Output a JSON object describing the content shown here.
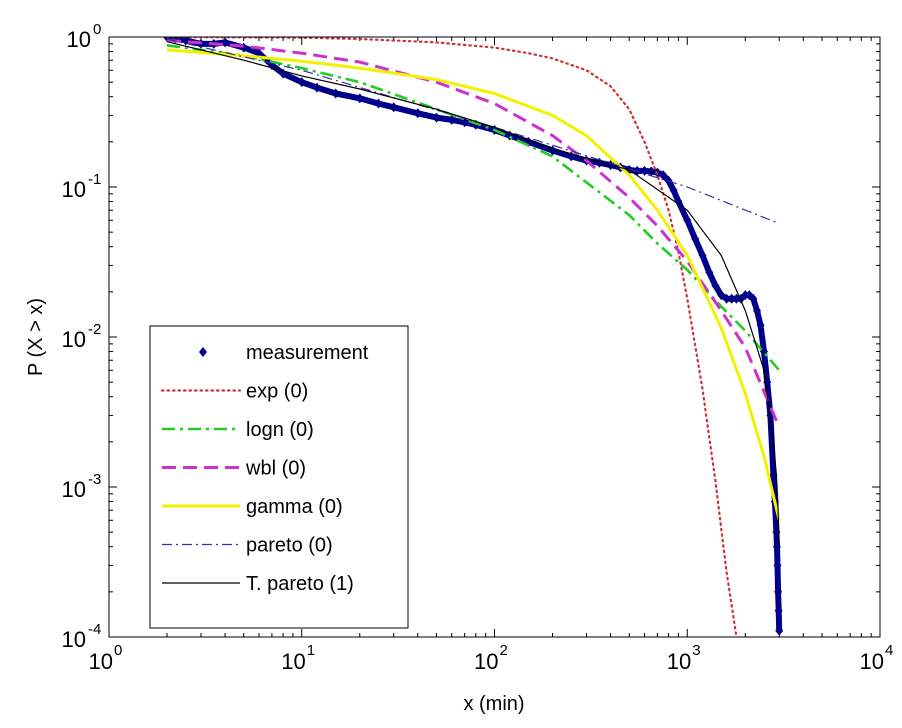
{
  "chart_data": {
    "type": "line",
    "xlabel": "x (min)",
    "ylabel": "P (X > x)",
    "xscale": "log",
    "yscale": "log",
    "xlim": [
      1,
      10000
    ],
    "ylim": [
      0.0001,
      1
    ],
    "x_ticks": [
      {
        "value": 1,
        "base": "10",
        "exp": "0"
      },
      {
        "value": 10,
        "base": "10",
        "exp": "1"
      },
      {
        "value": 100,
        "base": "10",
        "exp": "2"
      },
      {
        "value": 1000,
        "base": "10",
        "exp": "3"
      },
      {
        "value": 10000,
        "base": "10",
        "exp": "4"
      }
    ],
    "y_ticks": [
      {
        "value": 1,
        "base": "10",
        "exp": "0"
      },
      {
        "value": 0.1,
        "base": "10",
        "exp": "-1"
      },
      {
        "value": 0.01,
        "base": "10",
        "exp": "-2"
      },
      {
        "value": 0.001,
        "base": "10",
        "exp": "-3"
      },
      {
        "value": 0.0001,
        "base": "10",
        "exp": "-4"
      }
    ],
    "grid": false,
    "legend_position": "bottom-left",
    "series": [
      {
        "name": "measurement",
        "style": "markers",
        "color": "#00008b",
        "x": [
          2,
          2.2,
          2.5,
          3,
          3.5,
          4,
          5,
          6,
          7,
          8,
          10,
          12,
          15,
          20,
          25,
          30,
          40,
          50,
          60,
          70,
          80,
          100,
          120,
          150,
          200,
          250,
          300,
          350,
          400,
          450,
          500,
          550,
          600,
          650,
          700,
          750,
          800,
          850,
          900,
          1000,
          1100,
          1200,
          1300,
          1400,
          1500,
          1600,
          1700,
          1800,
          1900,
          2000,
          2100,
          2200,
          2300,
          2400,
          2500,
          2600,
          2700,
          2800,
          2850,
          2900,
          2920,
          2940,
          2960,
          2980,
          3000
        ],
        "y": [
          1,
          0.98,
          0.95,
          0.9,
          0.9,
          0.92,
          0.85,
          0.78,
          0.65,
          0.57,
          0.5,
          0.46,
          0.42,
          0.39,
          0.36,
          0.34,
          0.31,
          0.29,
          0.28,
          0.27,
          0.26,
          0.24,
          0.22,
          0.2,
          0.175,
          0.16,
          0.15,
          0.145,
          0.14,
          0.135,
          0.13,
          0.128,
          0.128,
          0.127,
          0.125,
          0.12,
          0.11,
          0.095,
          0.08,
          0.06,
          0.045,
          0.035,
          0.027,
          0.022,
          0.019,
          0.018,
          0.018,
          0.018,
          0.018,
          0.019,
          0.019,
          0.018,
          0.015,
          0.012,
          0.008,
          0.005,
          0.003,
          0.0012,
          0.0008,
          0.0005,
          0.0004,
          0.0003,
          0.0002,
          0.00015,
          0.00011
        ]
      },
      {
        "name": "exp (0)",
        "style": "dotted",
        "color": "#cc3333",
        "x": [
          2,
          5,
          10,
          20,
          50,
          100,
          150,
          200,
          300,
          400,
          500,
          600,
          700,
          800,
          900,
          1000,
          1200,
          1400,
          1600,
          1800
        ],
        "y": [
          1,
          0.995,
          0.99,
          0.97,
          0.92,
          0.85,
          0.78,
          0.72,
          0.6,
          0.47,
          0.33,
          0.2,
          0.12,
          0.07,
          0.037,
          0.018,
          0.0045,
          0.0011,
          0.00027,
          0.0001
        ]
      },
      {
        "name": "logn (0)",
        "style": "dashdot",
        "color": "#22cc22",
        "x": [
          2,
          5,
          10,
          20,
          50,
          100,
          200,
          500,
          700,
          1000,
          1500,
          2000,
          3000
        ],
        "y": [
          0.88,
          0.75,
          0.62,
          0.5,
          0.33,
          0.24,
          0.16,
          0.065,
          0.042,
          0.028,
          0.016,
          0.011,
          0.006
        ]
      },
      {
        "name": "wbl (0)",
        "style": "dashed",
        "color": "#cc33cc",
        "x": [
          2,
          5,
          10,
          20,
          50,
          100,
          200,
          300,
          500,
          700,
          1000,
          1500,
          2000,
          3000
        ],
        "y": [
          0.95,
          0.87,
          0.78,
          0.68,
          0.5,
          0.36,
          0.22,
          0.15,
          0.085,
          0.055,
          0.032,
          0.015,
          0.0085,
          0.0025
        ]
      },
      {
        "name": "gamma (0)",
        "style": "solid-thick",
        "color": "#f2f200",
        "x": [
          2,
          5,
          10,
          20,
          50,
          100,
          200,
          300,
          500,
          700,
          1000,
          1500,
          2000,
          2500,
          3000
        ],
        "y": [
          0.82,
          0.75,
          0.69,
          0.62,
          0.52,
          0.42,
          0.3,
          0.22,
          0.12,
          0.07,
          0.035,
          0.0115,
          0.0042,
          0.0016,
          0.0006
        ]
      },
      {
        "name": "pareto (0)",
        "style": "dashdot-thin",
        "color": "#333399",
        "x": [
          2,
          10,
          100,
          1000,
          3000
        ],
        "y": [
          0.97,
          0.6,
          0.25,
          0.1,
          0.057
        ]
      },
      {
        "name": "T. pareto (1)",
        "style": "solid-thin",
        "color": "#000000",
        "x": [
          2,
          5,
          10,
          20,
          50,
          100,
          200,
          500,
          1000,
          1500,
          2000,
          2500,
          2800,
          2900,
          2950,
          3000
        ],
        "y": [
          0.93,
          0.7,
          0.55,
          0.45,
          0.33,
          0.25,
          0.18,
          0.13,
          0.07,
          0.035,
          0.015,
          0.006,
          0.002,
          0.0012,
          0.0008,
          0.0004
        ]
      }
    ]
  }
}
